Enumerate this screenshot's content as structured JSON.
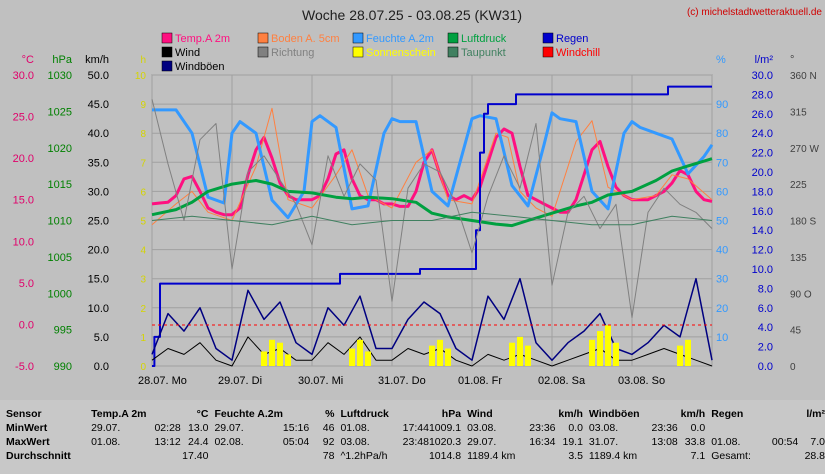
{
  "title": "Woche 28.07.25 - 03.08.25 (KW31)",
  "copyright": "(c) michelstadtwetteraktuell.de",
  "axes": {
    "celsius": {
      "unit": "°C",
      "ticks": [
        "30.0",
        "25.0",
        "20.0",
        "15.0",
        "10.0",
        "5.0",
        "0.0",
        "-5.0"
      ],
      "color": "#e0006a"
    },
    "hpa": {
      "unit": "hPa",
      "ticks": [
        "1030",
        "1025",
        "1020",
        "1015",
        "1010",
        "1005",
        "1000",
        "995",
        "990"
      ],
      "color": "#008000"
    },
    "kmh": {
      "unit": "km/h",
      "ticks": [
        "50.0",
        "45.0",
        "40.0",
        "35.0",
        "30.0",
        "25.0",
        "20.0",
        "15.0",
        "10.0",
        "5.0",
        "0.0"
      ],
      "color": "#000000"
    },
    "hours": {
      "unit": "h",
      "ticks": [
        "10",
        "9",
        "8",
        "7",
        "6",
        "5",
        "4",
        "3",
        "2",
        "1",
        "0"
      ],
      "color": "#d4d400"
    },
    "percent": {
      "unit": "%",
      "ticks": [
        "90",
        "80",
        "70",
        "60",
        "50",
        "40",
        "30",
        "20",
        "10"
      ],
      "color": "#3399ff"
    },
    "lm2": {
      "unit": "l/m²",
      "ticks": [
        "30.0",
        "28.0",
        "26.0",
        "24.0",
        "22.0",
        "20.0",
        "18.0",
        "16.0",
        "14.0",
        "12.0",
        "10.0",
        "8.0",
        "6.0",
        "4.0",
        "2.0",
        "0.0"
      ],
      "color": "#0000cc"
    },
    "degree": {
      "unit": "°",
      "ticks": [
        "360 N",
        "315",
        "270 W",
        "225",
        "180 S",
        "135",
        "90 O",
        "45",
        "0"
      ],
      "color": "#404040"
    }
  },
  "legend": [
    {
      "label": "Temp.A 2m",
      "color": "#ff1080"
    },
    {
      "label": "Boden A. 5cm",
      "color": "#ff8040"
    },
    {
      "label": "Feuchte A.2m",
      "color": "#3399ff"
    },
    {
      "label": "Luftdruck",
      "color": "#00a040"
    },
    {
      "label": "Regen",
      "color": "#0000cc"
    },
    {
      "label": "Wind",
      "color": "#000000"
    },
    {
      "label": "Richtung",
      "color": "#808080"
    },
    {
      "label": "Sonnenschein",
      "color": "#ffff00"
    },
    {
      "label": "Taupunkt",
      "color": "#408060"
    },
    {
      "label": "Windchill",
      "color": "#ff0000"
    },
    {
      "label": "Windböen",
      "color": "#000080"
    }
  ],
  "chart_data": {
    "type": "line",
    "x_labels": [
      "28.07. Mo",
      "29.07. Di",
      "30.07. Mi",
      "31.07. Do",
      "01.08. Fr",
      "02.08. Sa",
      "03.08. So"
    ],
    "x_days": [
      0,
      1,
      2,
      3,
      4,
      5,
      6
    ],
    "x_range": [
      0,
      7
    ],
    "grid": true,
    "series": [
      {
        "name": "Temp.A 2m",
        "axis": "celsius",
        "x": [
          0,
          0.1,
          0.2,
          0.3,
          0.4,
          0.5,
          0.6,
          0.7,
          0.8,
          0.9,
          1.0,
          1.1,
          1.2,
          1.3,
          1.4,
          1.5,
          1.6,
          1.7,
          1.8,
          1.9,
          2.0,
          2.1,
          2.2,
          2.3,
          2.4,
          2.5,
          2.6,
          2.7,
          2.8,
          2.9,
          3.0,
          3.1,
          3.2,
          3.3,
          3.4,
          3.5,
          3.6,
          3.7,
          3.8,
          3.9,
          4.0,
          4.1,
          4.2,
          4.3,
          4.4,
          4.5,
          4.6,
          4.7,
          4.8,
          4.9,
          5.0,
          5.1,
          5.2,
          5.3,
          5.4,
          5.5,
          5.6,
          5.7,
          5.8,
          5.9,
          6.0,
          6.1,
          6.2,
          6.3,
          6.4,
          6.5,
          6.6,
          6.7,
          6.8,
          6.9,
          7.0
        ],
        "y": [
          14.5,
          14.6,
          14.7,
          15.5,
          17.5,
          17.8,
          16.0,
          14.0,
          13.5,
          13.2,
          13.2,
          14.0,
          18.0,
          21.0,
          22.5,
          20.0,
          17.0,
          15.5,
          15.0,
          15.0,
          15.0,
          15.5,
          17.5,
          20.5,
          21.0,
          17.5,
          15.5,
          15.0,
          15.0,
          14.5,
          14.5,
          14.2,
          14.2,
          16.0,
          19.5,
          21.0,
          18.0,
          15.5,
          15.0,
          15.5,
          15.0,
          16.5,
          19.5,
          22.5,
          23.5,
          23.0,
          19.0,
          15.5,
          15.0,
          14.5,
          14.0,
          13.5,
          13.5,
          15.0,
          18.0,
          21.0,
          22.0,
          19.0,
          16.5,
          15.5,
          15.0,
          15.0,
          15.0,
          15.5,
          16.0,
          17.0,
          18.5,
          18.0,
          16.0,
          15.0,
          14.8
        ]
      },
      {
        "name": "Boden A. 5cm",
        "axis": "celsius",
        "x": [
          0,
          0.3,
          0.5,
          0.7,
          1.0,
          1.3,
          1.5,
          1.7,
          2.0,
          2.3,
          2.5,
          2.7,
          3.0,
          3.3,
          3.5,
          3.7,
          4.0,
          4.3,
          4.45,
          4.6,
          4.8,
          5.0,
          5.3,
          5.5,
          5.7,
          6.0,
          6.3,
          6.5,
          6.7,
          7.0
        ],
        "y": [
          12.0,
          14.5,
          16.0,
          13.5,
          12.5,
          19.0,
          26.0,
          15.0,
          14.0,
          18.0,
          21.0,
          15.5,
          14.0,
          19.5,
          21.0,
          15.0,
          14.5,
          23.0,
          22.5,
          16.0,
          14.0,
          13.0,
          22.0,
          24.5,
          16.5,
          15.0,
          15.5,
          18.0,
          17.5,
          15.0
        ]
      },
      {
        "name": "Feuchte A.2m",
        "axis": "percent",
        "x": [
          0,
          0.1,
          0.3,
          0.5,
          0.7,
          0.9,
          1.0,
          1.1,
          1.3,
          1.5,
          1.7,
          1.9,
          2.0,
          2.1,
          2.3,
          2.5,
          2.7,
          2.9,
          3.0,
          3.1,
          3.3,
          3.5,
          3.7,
          3.9,
          4.0,
          4.1,
          4.3,
          4.5,
          4.7,
          4.9,
          5.0,
          5.1,
          5.3,
          5.5,
          5.7,
          5.9,
          6.0,
          6.1,
          6.3,
          6.5,
          6.7,
          6.9,
          7.0
        ],
        "y": [
          88,
          88,
          88,
          80,
          58,
          56,
          80,
          84,
          80,
          57,
          51,
          60,
          84,
          86,
          82,
          54,
          55,
          80,
          85,
          84,
          84,
          60,
          55,
          75,
          85,
          86,
          85,
          62,
          55,
          76,
          87,
          85,
          84,
          60,
          54,
          80,
          84,
          82,
          80,
          78,
          66,
          72,
          76
        ]
      },
      {
        "name": "Luftdruck",
        "axis": "hpa",
        "x": [
          0,
          0.3,
          0.5,
          0.7,
          1.0,
          1.3,
          1.5,
          1.7,
          2.0,
          2.3,
          2.5,
          2.7,
          3.0,
          3.3,
          3.5,
          3.7,
          4.0,
          4.3,
          4.5,
          4.7,
          5.0,
          5.3,
          5.5,
          5.7,
          6.0,
          6.3,
          6.5,
          6.7,
          7.0
        ],
        "y": [
          1010.8,
          1011.5,
          1012.5,
          1014.0,
          1015.0,
          1015.5,
          1015.0,
          1014.0,
          1013.8,
          1013.2,
          1013.0,
          1013.2,
          1013.0,
          1012.5,
          1011.0,
          1010.5,
          1010.0,
          1009.5,
          1009.3,
          1010.0,
          1011.0,
          1012.0,
          1012.5,
          1013.5,
          1014.0,
          1015.5,
          1016.8,
          1017.5,
          1018.5
        ]
      },
      {
        "name": "Regen",
        "axis": "lm2",
        "x": [
          0,
          0.03,
          0.1,
          0.2,
          2.3,
          2.35,
          3.3,
          3.35,
          4.0,
          4.05,
          4.1,
          4.15,
          4.2,
          4.25,
          4.5,
          4.55,
          4.9,
          5.0,
          6.0,
          6.4,
          6.45,
          7.0
        ],
        "y": [
          0.0,
          3.0,
          8.5,
          8.5,
          8.5,
          9.5,
          9.5,
          10.0,
          10.0,
          14.0,
          22.0,
          26.0,
          27.0,
          27.0,
          27.0,
          28.0,
          28.0,
          28.0,
          28.0,
          28.0,
          28.8,
          28.8
        ]
      },
      {
        "name": "Wind",
        "axis": "kmh",
        "x": [
          0,
          0.2,
          0.4,
          0.6,
          0.8,
          1.0,
          1.2,
          1.4,
          1.6,
          1.8,
          2.0,
          2.2,
          2.4,
          2.6,
          2.8,
          3.0,
          3.2,
          3.4,
          3.6,
          3.8,
          4.0,
          4.2,
          4.4,
          4.6,
          4.8,
          5.0,
          5.2,
          5.4,
          5.6,
          5.8,
          6.0,
          6.2,
          6.4,
          6.6,
          6.8,
          7.0
        ],
        "y": [
          1,
          3,
          2,
          4,
          1,
          0,
          5,
          2,
          3,
          1,
          1,
          4,
          2,
          5,
          1,
          1,
          3,
          2,
          3,
          1,
          0,
          2,
          1,
          2,
          1,
          0,
          1,
          2,
          3,
          1,
          1,
          2,
          3,
          2,
          1,
          0
        ]
      },
      {
        "name": "Windböen",
        "axis": "kmh",
        "x": [
          0,
          0.2,
          0.4,
          0.6,
          0.8,
          1.0,
          1.2,
          1.4,
          1.6,
          1.8,
          2.0,
          2.2,
          2.4,
          2.6,
          2.8,
          3.0,
          3.2,
          3.4,
          3.6,
          3.8,
          4.0,
          4.2,
          4.4,
          4.6,
          4.8,
          5.0,
          5.2,
          5.4,
          5.6,
          5.8,
          6.0,
          6.2,
          6.4,
          6.6,
          6.8,
          7.0
        ],
        "y": [
          2,
          9,
          6,
          10,
          3,
          1,
          13,
          8,
          11,
          4,
          2,
          10,
          7,
          12,
          3,
          3,
          8,
          11,
          9,
          3,
          1,
          12,
          8,
          15,
          4,
          1,
          4,
          6,
          9,
          3,
          2,
          4,
          7,
          5,
          15,
          1
        ]
      },
      {
        "name": "Richtung",
        "axis": "degree",
        "x": [
          0,
          0.2,
          0.4,
          0.6,
          0.8,
          1.0,
          1.2,
          1.4,
          1.6,
          1.8,
          2.0,
          2.2,
          2.4,
          2.6,
          2.8,
          3.0,
          3.2,
          3.4,
          3.6,
          3.8,
          4.0,
          4.2,
          4.4,
          4.6,
          4.8,
          5.0,
          5.2,
          5.4,
          5.6,
          5.8,
          6.0,
          6.2,
          6.4,
          6.6,
          6.8,
          7.0
        ],
        "y": [
          330,
          250,
          180,
          280,
          300,
          120,
          240,
          260,
          230,
          200,
          150,
          260,
          210,
          250,
          230,
          80,
          220,
          250,
          240,
          200,
          140,
          210,
          260,
          220,
          300,
          100,
          190,
          210,
          170,
          200,
          60,
          190,
          220,
          200,
          190,
          170
        ]
      },
      {
        "name": "Taupunkt",
        "axis": "celsius",
        "x": [
          0,
          0.5,
          1.0,
          1.5,
          2.0,
          2.5,
          3.0,
          3.5,
          4.0,
          4.5,
          5.0,
          5.5,
          6.0,
          6.5,
          7.0
        ],
        "y": [
          12.5,
          13.0,
          12.5,
          12.0,
          13.0,
          12.0,
          12.5,
          12.5,
          13.5,
          13.0,
          12.5,
          12.0,
          12.0,
          13.0,
          12.5
        ]
      },
      {
        "name": "Sonnenschein",
        "axis": "hours",
        "x": [
          1.4,
          1.5,
          1.6,
          1.7,
          2.5,
          2.6,
          2.7,
          3.5,
          3.6,
          3.7,
          4.5,
          4.6,
          4.7,
          5.5,
          5.6,
          5.7,
          5.8,
          6.6,
          6.7
        ],
        "y": [
          0.5,
          0.9,
          0.8,
          0.4,
          0.6,
          0.9,
          0.5,
          0.7,
          0.9,
          0.6,
          0.8,
          1.0,
          0.7,
          0.9,
          1.2,
          1.4,
          0.8,
          0.7,
          0.9
        ]
      }
    ]
  },
  "stats": {
    "rowlabels": [
      "Sensor",
      "MinWert",
      "MaxWert",
      "Durchschnitt"
    ],
    "groups": [
      {
        "name": "Temp.A 2m",
        "unit": "°C",
        "rows": [
          [
            "29.07.",
            "02:28",
            "13.0"
          ],
          [
            "01.08.",
            "13:12",
            "24.4"
          ],
          [
            "",
            "",
            "17.40"
          ]
        ]
      },
      {
        "name": "Feuchte A.2m",
        "unit": "%",
        "rows": [
          [
            "29.07.",
            "15:16",
            "46"
          ],
          [
            "02.08.",
            "05:04",
            "92"
          ],
          [
            "",
            "",
            "78"
          ]
        ]
      },
      {
        "name": "Luftdruck",
        "unit": "hPa",
        "rows": [
          [
            "01.08.",
            "17:44",
            "1009.1"
          ],
          [
            "03.08.",
            "23:48",
            "1020.3"
          ],
          [
            "^1.2hPa/h",
            "",
            "1014.8"
          ]
        ]
      },
      {
        "name": "Wind",
        "unit": "km/h",
        "rows": [
          [
            "03.08.",
            "23:36",
            "0.0"
          ],
          [
            "29.07.",
            "16:34",
            "19.1"
          ],
          [
            "1189.4 km",
            "",
            "3.5"
          ]
        ]
      },
      {
        "name": "Windböen",
        "unit": "km/h",
        "rows": [
          [
            "03.08.",
            "23:36",
            "0.0"
          ],
          [
            "31.07.",
            "13:08",
            "33.8"
          ],
          [
            "1189.4 km",
            "",
            "7.1"
          ]
        ]
      },
      {
        "name": "Regen",
        "unit": "l/m²",
        "rows": [
          [
            "",
            "",
            ""
          ],
          [
            "01.08.",
            "00:54",
            "7.0"
          ],
          [
            "Gesamt:",
            "",
            "28.8"
          ]
        ]
      }
    ]
  }
}
